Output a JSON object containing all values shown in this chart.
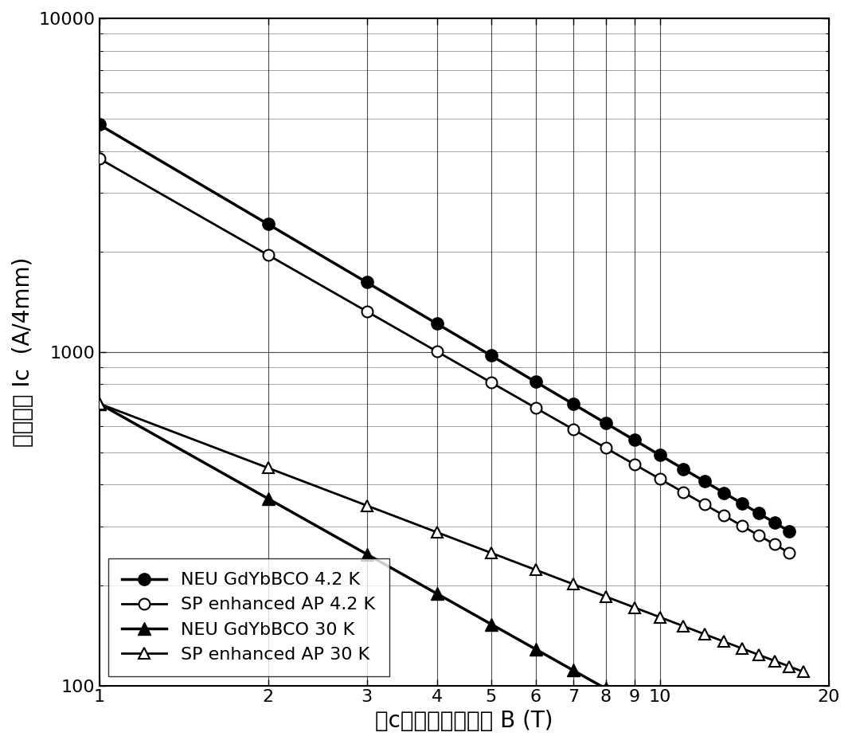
{
  "title": "",
  "xlabel": "沿c方向的磁场强度 B (T)",
  "ylabel": "临界电流 Ic  (A/4mm)",
  "xlim": [
    1,
    20
  ],
  "ylim": [
    100,
    10000
  ],
  "background_color": "#ffffff",
  "series": [
    {
      "label": "NEU GdYbBCO 4.2 K",
      "x": [
        1,
        2,
        3,
        4,
        5,
        6,
        7,
        8,
        9,
        10,
        11,
        12,
        13,
        14,
        15,
        16,
        17
      ],
      "y": [
        4800,
        2800,
        2000,
        1550,
        1200,
        950,
        800,
        680,
        580,
        520,
        460,
        410,
        375,
        345,
        320,
        300,
        290
      ],
      "marker": "o",
      "marker_fill": "black",
      "line_color": "black",
      "line_width": 2.5,
      "marker_size": 12
    },
    {
      "label": "SP enhanced AP 4.2 K",
      "x": [
        1,
        2,
        3,
        4,
        5,
        6,
        7,
        8,
        9,
        10,
        11,
        12,
        13,
        14,
        15,
        16,
        17
      ],
      "y": [
        3800,
        1900,
        1200,
        850,
        660,
        530,
        440,
        385,
        345,
        315,
        295,
        278,
        268,
        260,
        255,
        252,
        250
      ],
      "marker": "o",
      "marker_fill": "white",
      "line_color": "black",
      "line_width": 2.0,
      "marker_size": 11
    },
    {
      "label": "NEU GdYbBCO 30 K",
      "x": [
        1,
        2,
        3,
        4,
        5,
        6,
        7,
        8,
        9,
        10,
        11,
        12,
        13,
        14,
        15,
        16,
        17
      ],
      "y": [
        700,
        490,
        380,
        305,
        255,
        215,
        183,
        160,
        143,
        128,
        115,
        100,
        87,
        75,
        65,
        56,
        48
      ],
      "marker": "^",
      "marker_fill": "black",
      "line_color": "black",
      "line_width": 2.5,
      "marker_size": 12
    },
    {
      "label": "SP enhanced AP 30 K",
      "x": [
        1,
        2,
        3,
        4,
        5,
        6,
        7,
        8,
        9,
        10,
        11,
        12,
        13,
        14,
        15,
        16,
        17,
        17.5,
        18
      ],
      "y": [
        700,
        430,
        310,
        240,
        200,
        170,
        148,
        131,
        119,
        108,
        99,
        91,
        84,
        157,
        150,
        143,
        137,
        127,
        118
      ],
      "marker": "^",
      "marker_fill": "white",
      "line_color": "black",
      "line_width": 2.0,
      "marker_size": 11
    }
  ]
}
